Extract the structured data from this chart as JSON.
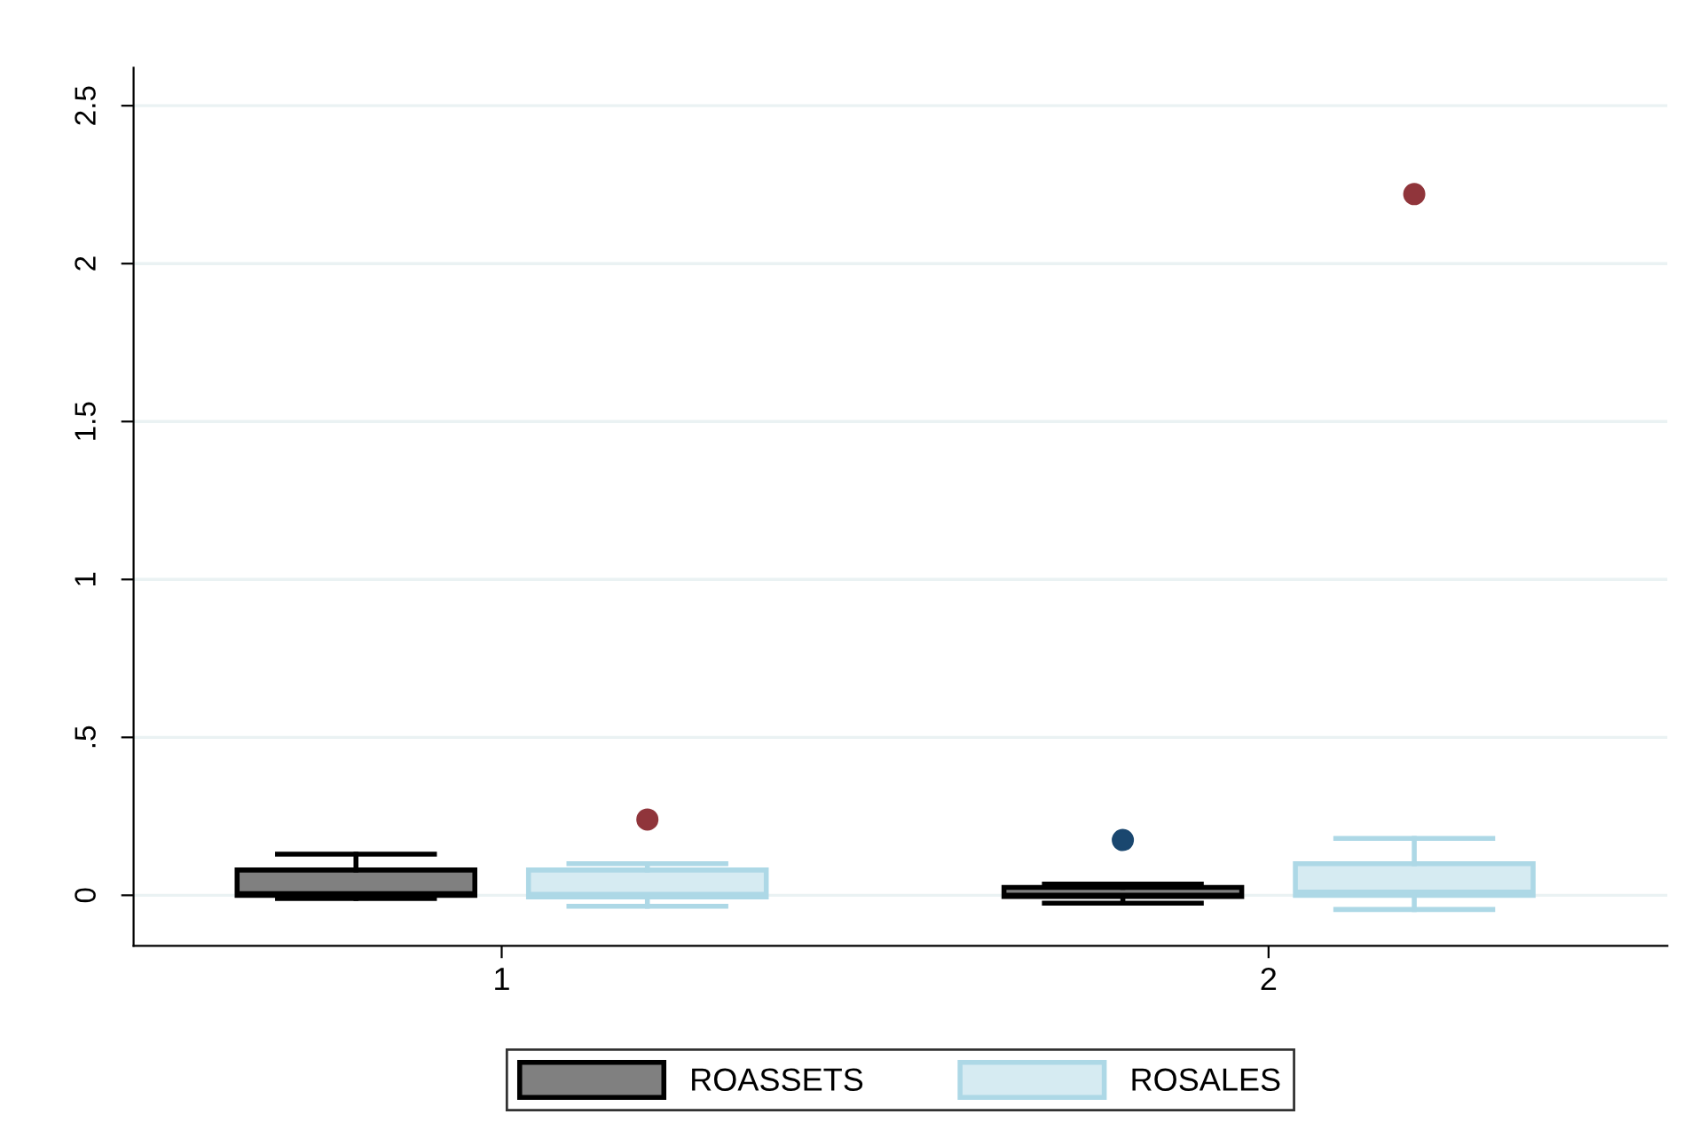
{
  "chart_data": {
    "type": "box",
    "categories": [
      "1",
      "2"
    ],
    "series": [
      {
        "name": "ROASSETS",
        "color": "#808080",
        "boxes": [
          {
            "low": -0.01,
            "q1": 0.0,
            "median": 0.005,
            "q3": 0.08,
            "high": 0.13
          },
          {
            "low": -0.025,
            "q1": -0.004,
            "median": 0.0,
            "q3": 0.025,
            "high": 0.035,
            "outliers": [
              0.175
            ]
          }
        ]
      },
      {
        "name": "ROSALES",
        "color": "#d6ebf2",
        "boxes": [
          {
            "low": -0.035,
            "q1": -0.005,
            "median": 0.003,
            "q3": 0.08,
            "high": 0.1,
            "outliers": [
              0.24
            ]
          },
          {
            "low": -0.045,
            "q1": 0.0,
            "median": 0.01,
            "q3": 0.1,
            "high": 0.18,
            "outliers": [
              2.22
            ]
          }
        ]
      }
    ],
    "ylim": [
      -0.16,
      2.62
    ],
    "yticks": [
      0,
      {
        "value": 0.5,
        "label": ".5"
      },
      1,
      1.5,
      2,
      2.5
    ],
    "grid": "y",
    "legend": "bottom"
  }
}
